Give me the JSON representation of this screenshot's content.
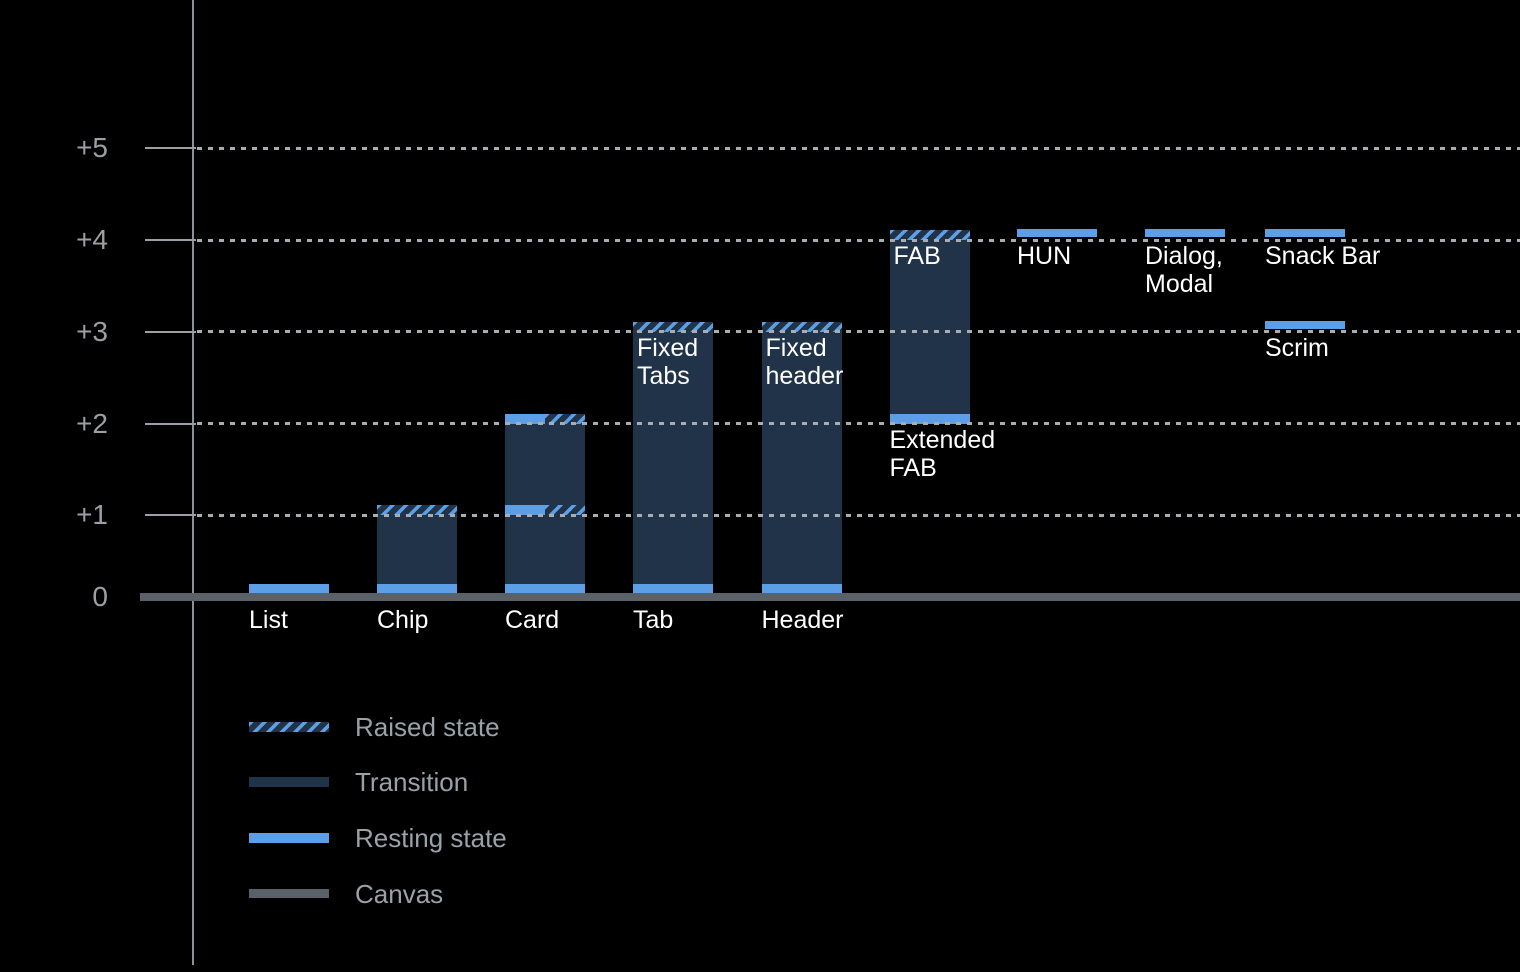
{
  "colors": {
    "background": "#000000",
    "transition": "#203349",
    "resting": "#5d9fe6",
    "canvas": "#5a6168",
    "grid": "#a8adb2",
    "tick": "#9aa0a6",
    "axis_line": "#8b9197",
    "tick_label": "#9aa0a5",
    "legend_label": "#9aa2a9",
    "bar_label": "#ffffff"
  },
  "chart_data": {
    "type": "bar",
    "description_visible_text_only": true,
    "ylim": [
      0,
      5
    ],
    "grid": "dotted-horizontal",
    "y_axis": {
      "ticks": [
        {
          "label": "+5",
          "value": 5
        },
        {
          "label": "+4",
          "value": 4
        },
        {
          "label": "+3",
          "value": 3
        },
        {
          "label": "+2",
          "value": 2
        },
        {
          "label": "+1",
          "value": 1
        },
        {
          "label": "0",
          "value": 0
        }
      ]
    },
    "components": [
      {
        "label": "List",
        "label_pos": "axis",
        "bands": [
          {
            "kind": "resting",
            "at": 0
          }
        ]
      },
      {
        "label": "Chip",
        "label_pos": "axis",
        "bands": [
          {
            "kind": "transition",
            "from": 0,
            "to": 1
          },
          {
            "kind": "raised",
            "at": 1
          },
          {
            "kind": "resting",
            "at": 0
          }
        ]
      },
      {
        "label": "Card",
        "label_pos": "axis",
        "bands": [
          {
            "kind": "transition",
            "from": 0,
            "to": 2
          },
          {
            "kind": "resting-raised",
            "at": 1
          },
          {
            "kind": "resting-raised",
            "at": 2
          },
          {
            "kind": "resting",
            "at": 0
          }
        ]
      },
      {
        "label": "Tab",
        "label_pos": "axis",
        "bar_label": "Fixed\nTabs",
        "bands": [
          {
            "kind": "transition",
            "from": 0,
            "to": 3
          },
          {
            "kind": "raised",
            "at": 3
          },
          {
            "kind": "resting",
            "at": 0
          }
        ]
      },
      {
        "label": "Header",
        "label_pos": "axis",
        "bar_label": "Fixed\nheader",
        "bands": [
          {
            "kind": "transition",
            "from": 0,
            "to": 3
          },
          {
            "kind": "raised",
            "at": 3
          },
          {
            "kind": "resting",
            "at": 0
          }
        ]
      },
      {
        "label": "Extended\nFAB",
        "label_pos": "below-bar",
        "bar_label": "FAB",
        "bands": [
          {
            "kind": "transition",
            "from": 2,
            "to": 4
          },
          {
            "kind": "raised",
            "at": 4
          },
          {
            "kind": "resting",
            "at": 2
          }
        ]
      },
      {
        "label": "HUN",
        "label_pos": "under-band",
        "bands": [
          {
            "kind": "resting",
            "at": 4,
            "floating": true
          }
        ]
      },
      {
        "label": "Dialog,\nModal",
        "label_pos": "under-band",
        "bands": [
          {
            "kind": "resting",
            "at": 4,
            "floating": true
          }
        ]
      },
      {
        "label": "Snack Bar",
        "label_pos": "under-band",
        "bands": [
          {
            "kind": "resting",
            "at": 4,
            "floating": true
          }
        ]
      },
      {
        "label": "Scrim",
        "label_pos": "under-band",
        "bands": [
          {
            "kind": "resting",
            "at": 3,
            "floating": true
          }
        ]
      }
    ],
    "legend": [
      {
        "swatch": "raised",
        "label": "Raised state"
      },
      {
        "swatch": "transition",
        "label": "Transition"
      },
      {
        "swatch": "resting",
        "label": "Resting state"
      },
      {
        "swatch": "canvas",
        "label": "Canvas"
      }
    ]
  }
}
